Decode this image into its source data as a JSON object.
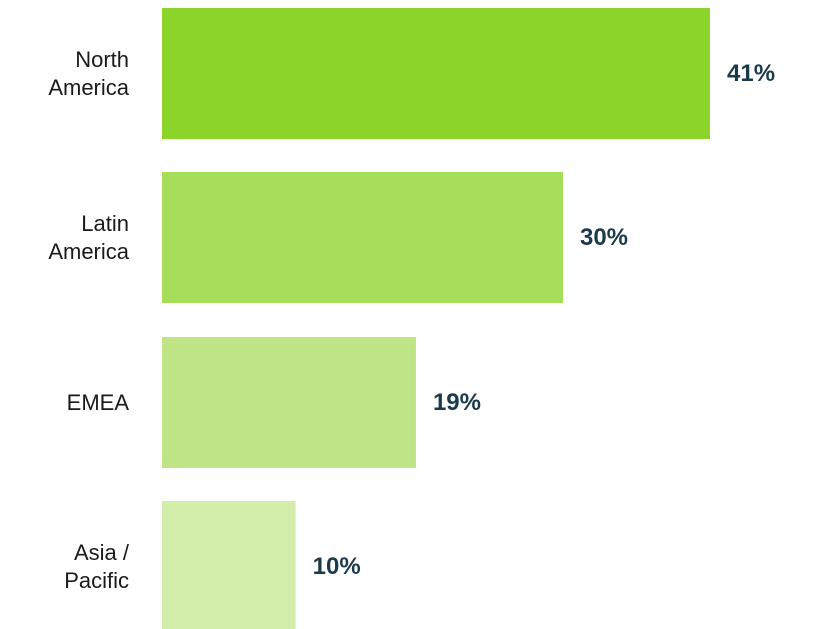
{
  "chart_data": {
    "type": "bar",
    "orientation": "horizontal",
    "categories": [
      [
        "North",
        "America"
      ],
      [
        "Latin",
        "America"
      ],
      [
        "EMEA"
      ],
      [
        "Asia /",
        "Pacific"
      ]
    ],
    "values": [
      41,
      30,
      19,
      10
    ],
    "value_labels": [
      "41%",
      "30%",
      "19%",
      "10%"
    ],
    "value_unit": "%",
    "xlim": [
      0,
      45
    ],
    "grid": false,
    "legend": "none",
    "title": "",
    "xlabel": "",
    "ylabel": ""
  },
  "colors": {
    "bars": [
      "#8bd42a",
      "#a6dd5a",
      "#bfe587",
      "#d3edab"
    ],
    "value_label": "#1b3a4b",
    "category_label": "#1a1a1a"
  }
}
